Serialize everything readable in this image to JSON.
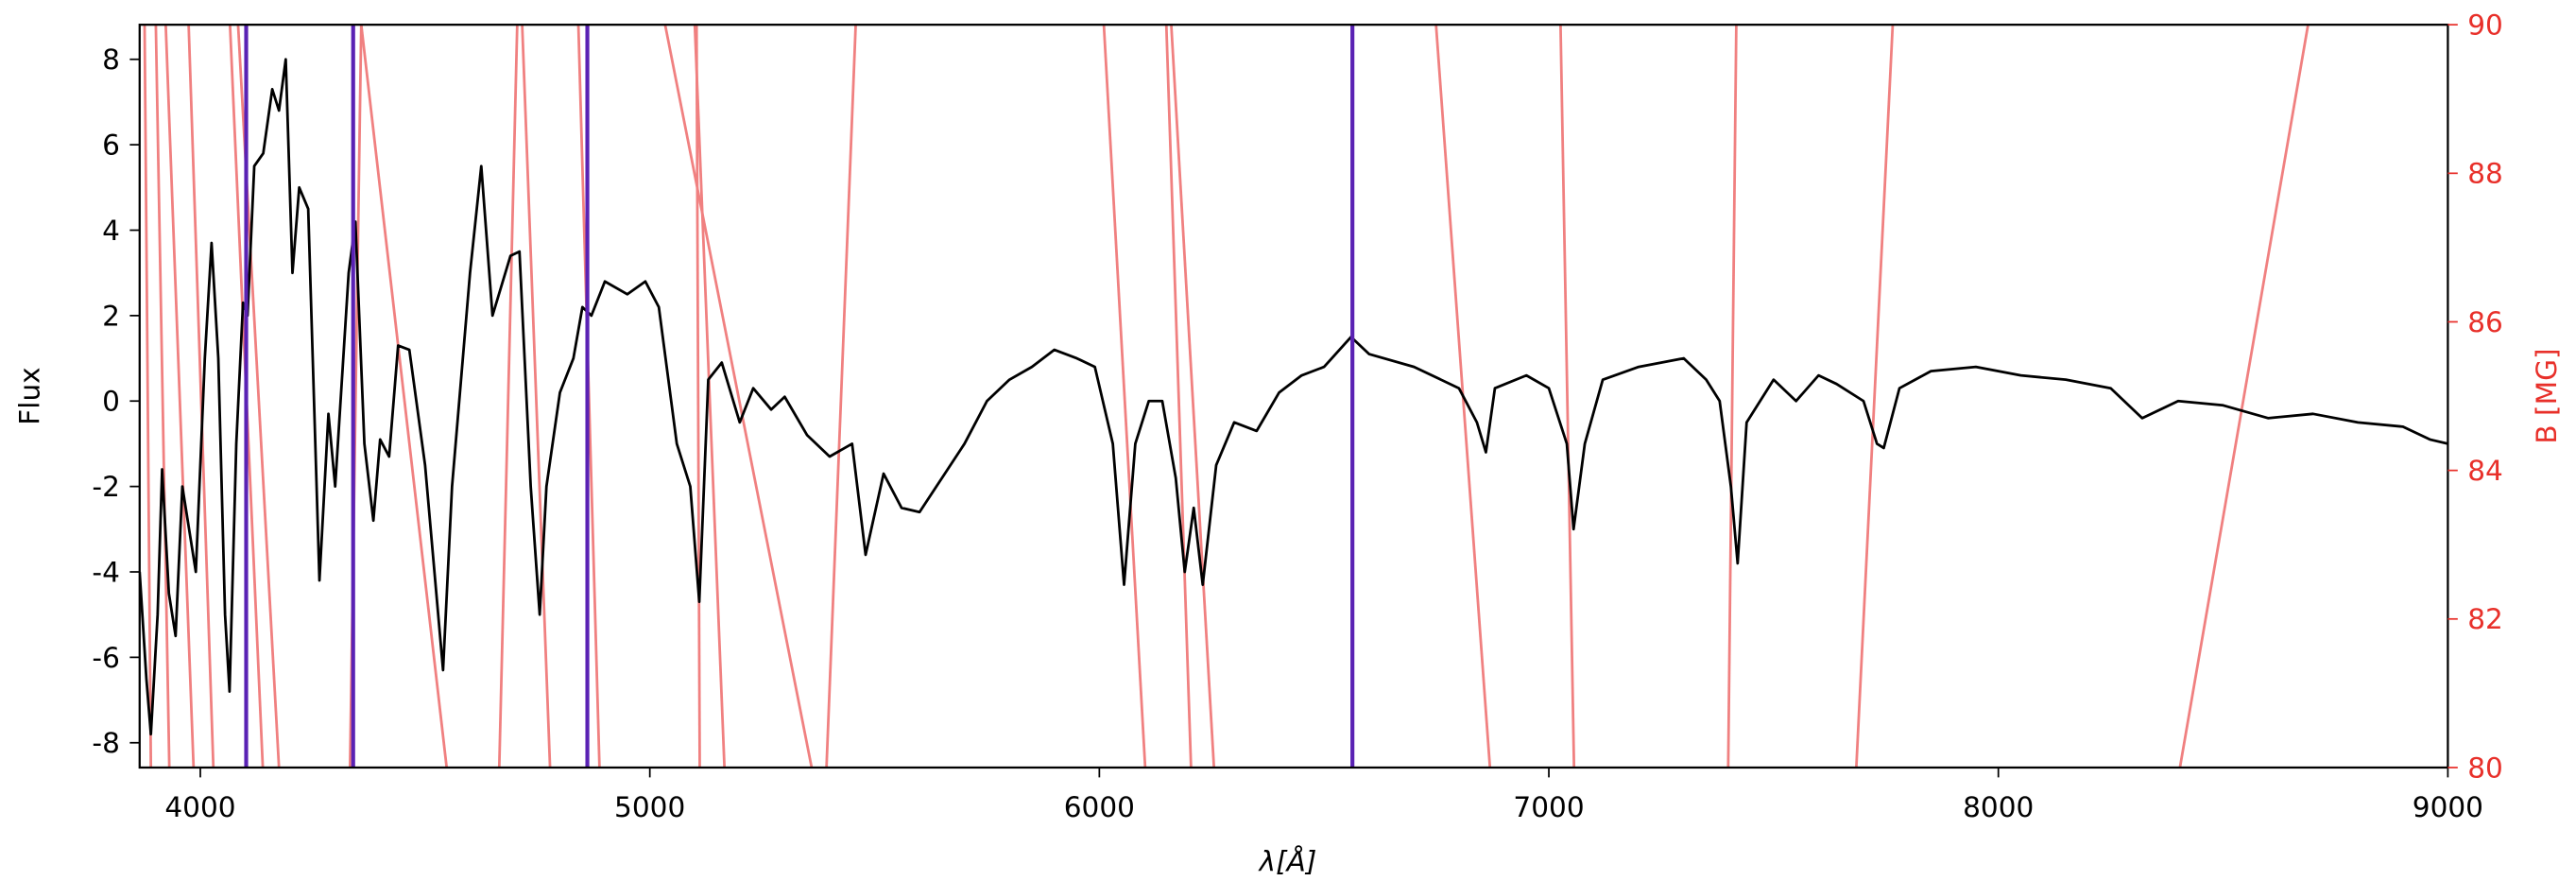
{
  "chart_data": {
    "type": "line",
    "xlabel": "λ[Å]",
    "ylabel": "Flux",
    "y2label": "B [MG]",
    "y2_color": "#e8302a",
    "xlim": [
      3865,
      9000
    ],
    "xticks": [
      4000,
      5000,
      6000,
      7000,
      8000,
      9000
    ],
    "ylim": [
      -8.58,
      8.81
    ],
    "yticks": [
      -8,
      -6,
      -4,
      -2,
      0,
      2,
      4,
      6,
      8
    ],
    "y2lim": [
      80,
      90
    ],
    "y2ticks": [
      80,
      82,
      84,
      86,
      88,
      90
    ],
    "x": [
      3865,
      3880,
      3890,
      3905,
      3915,
      3930,
      3945,
      3960,
      3975,
      3990,
      4010,
      4025,
      4040,
      4055,
      4065,
      4080,
      4095,
      4105,
      4120,
      4140,
      4160,
      4175,
      4190,
      4205,
      4220,
      4240,
      4265,
      4285,
      4300,
      4330,
      4345,
      4365,
      4385,
      4400,
      4420,
      4440,
      4465,
      4500,
      4540,
      4560,
      4600,
      4625,
      4650,
      4690,
      4710,
      4735,
      4755,
      4770,
      4800,
      4830,
      4850,
      4870,
      4900,
      4950,
      4990,
      5020,
      5060,
      5090,
      5110,
      5130,
      5160,
      5200,
      5230,
      5270,
      5300,
      5350,
      5400,
      5450,
      5480,
      5520,
      5560,
      5600,
      5650,
      5700,
      5750,
      5800,
      5850,
      5900,
      5950,
      5990,
      6030,
      6055,
      6080,
      6110,
      6140,
      6170,
      6190,
      6210,
      6230,
      6260,
      6300,
      6350,
      6400,
      6450,
      6500,
      6560,
      6600,
      6700,
      6800,
      6840,
      6860,
      6880,
      6950,
      7000,
      7040,
      7055,
      7080,
      7120,
      7200,
      7300,
      7350,
      7380,
      7405,
      7420,
      7440,
      7500,
      7550,
      7600,
      7640,
      7700,
      7730,
      7745,
      7780,
      7850,
      7950,
      8050,
      8150,
      8250,
      8320,
      8400,
      8500,
      8600,
      8700,
      8800,
      8900,
      8960,
      9000
    ],
    "series": [
      {
        "color": "#000000",
        "values": [
          -4,
          -6.5,
          -7.8,
          -5,
          -1.6,
          -4.5,
          -5.5,
          -2,
          -3,
          -4,
          1,
          3.7,
          1,
          -5,
          -6.8,
          -1,
          2.3,
          2,
          5.5,
          5.8,
          7.3,
          6.8,
          8,
          3,
          5,
          4.5,
          -4.2,
          -0.3,
          -2,
          3,
          4.2,
          -1,
          -2.8,
          -0.9,
          -1.3,
          1.3,
          1.2,
          -1.5,
          -6.3,
          -2,
          3,
          5.5,
          2,
          3.4,
          3.5,
          -2,
          -5,
          -2,
          0.2,
          1,
          2.2,
          2,
          2.8,
          2.5,
          2.8,
          2.2,
          -1,
          -2,
          -4.7,
          0.5,
          0.9,
          -0.5,
          0.3,
          -0.2,
          0.1,
          -0.8,
          -1.3,
          -1,
          -3.6,
          -1.7,
          -2.5,
          -2.6,
          -1.8,
          -1,
          0,
          0.5,
          0.8,
          1.2,
          1,
          0.8,
          -1,
          -4.3,
          -1,
          0,
          0,
          -1.8,
          -4,
          -2.5,
          -4.3,
          -1.5,
          -0.5,
          -0.7,
          0.2,
          0.6,
          0.8,
          1.5,
          1.1,
          0.8,
          0.3,
          -0.5,
          -1.2,
          0.3,
          0.6,
          0.3,
          -1,
          -3,
          -1,
          0.5,
          0.8,
          1,
          0.5,
          0,
          -2,
          -3.8,
          -0.5,
          0.5,
          0,
          0.6,
          0.4,
          0,
          -1,
          -1.1,
          0.3,
          0.7,
          0.8,
          0.6,
          0.5,
          0.3,
          -0.4,
          0,
          -0.1,
          -0.4,
          -0.3,
          -0.5,
          -0.6,
          -0.9,
          -1
        ]
      }
    ],
    "curve_color": "#f08080",
    "curves": [
      {
        "axis": "y2",
        "x": [
          8404,
          8689
        ],
        "values": [
          80,
          90
        ]
      },
      {
        "axis": "y2",
        "x": [
          7684,
          7765
        ],
        "values": [
          80,
          90
        ]
      },
      {
        "axis": "y2",
        "x": [
          7399,
          7417
        ],
        "values": [
          80,
          90
        ]
      },
      {
        "axis": "y2",
        "x": [
          7056,
          7026
        ],
        "values": [
          80,
          90
        ]
      },
      {
        "axis": "y2",
        "x": [
          6869,
          6749
        ],
        "values": [
          80,
          90
        ]
      },
      {
        "axis": "y2",
        "x": [
          6255,
          6160
        ],
        "values": [
          80,
          90
        ]
      },
      {
        "axis": "y2",
        "x": [
          6204,
          6149
        ],
        "values": [
          80,
          90
        ]
      },
      {
        "axis": "y2",
        "x": [
          6102,
          6010
        ],
        "values": [
          80,
          90
        ]
      },
      {
        "axis": "y2",
        "x": [
          5393,
          5458
        ],
        "values": [
          80,
          90
        ]
      },
      {
        "axis": "y2",
        "x": [
          5360,
          5034
        ],
        "values": [
          80,
          90
        ]
      },
      {
        "axis": "y2",
        "x": [
          5166,
          5100
        ],
        "values": [
          80,
          90
        ]
      },
      {
        "axis": "y2",
        "x": [
          5111,
          5104
        ],
        "values": [
          80,
          90
        ]
      },
      {
        "axis": "y2",
        "x": [
          4888,
          4841
        ],
        "values": [
          80,
          90
        ]
      },
      {
        "axis": "y2",
        "x": [
          4778,
          4716
        ],
        "values": [
          80,
          90
        ]
      },
      {
        "axis": "y2",
        "x": [
          4665,
          4705
        ],
        "values": [
          80,
          90
        ]
      },
      {
        "axis": "y2",
        "x": [
          4548,
          4358
        ],
        "values": [
          80,
          90
        ]
      },
      {
        "axis": "y2",
        "x": [
          4333,
          4358
        ],
        "values": [
          80,
          90
        ]
      },
      {
        "axis": "y2",
        "x": [
          4175,
          4084
        ],
        "values": [
          80,
          90
        ]
      },
      {
        "axis": "y2",
        "x": [
          4139,
          4066
        ],
        "values": [
          80,
          90
        ]
      },
      {
        "axis": "y2",
        "x": [
          4029,
          3974
        ],
        "values": [
          80,
          90
        ]
      },
      {
        "axis": "y2",
        "x": [
          3985,
          3923
        ],
        "values": [
          80,
          90
        ]
      },
      {
        "axis": "y2",
        "x": [
          3931,
          3901
        ],
        "values": [
          80,
          90
        ]
      },
      {
        "axis": "y2",
        "x": [
          3890,
          3876
        ],
        "values": [
          80,
          90
        ]
      }
    ],
    "vline_color": "#5a22b4",
    "vlines": [
      4102,
      4340,
      4861,
      6563
    ]
  }
}
